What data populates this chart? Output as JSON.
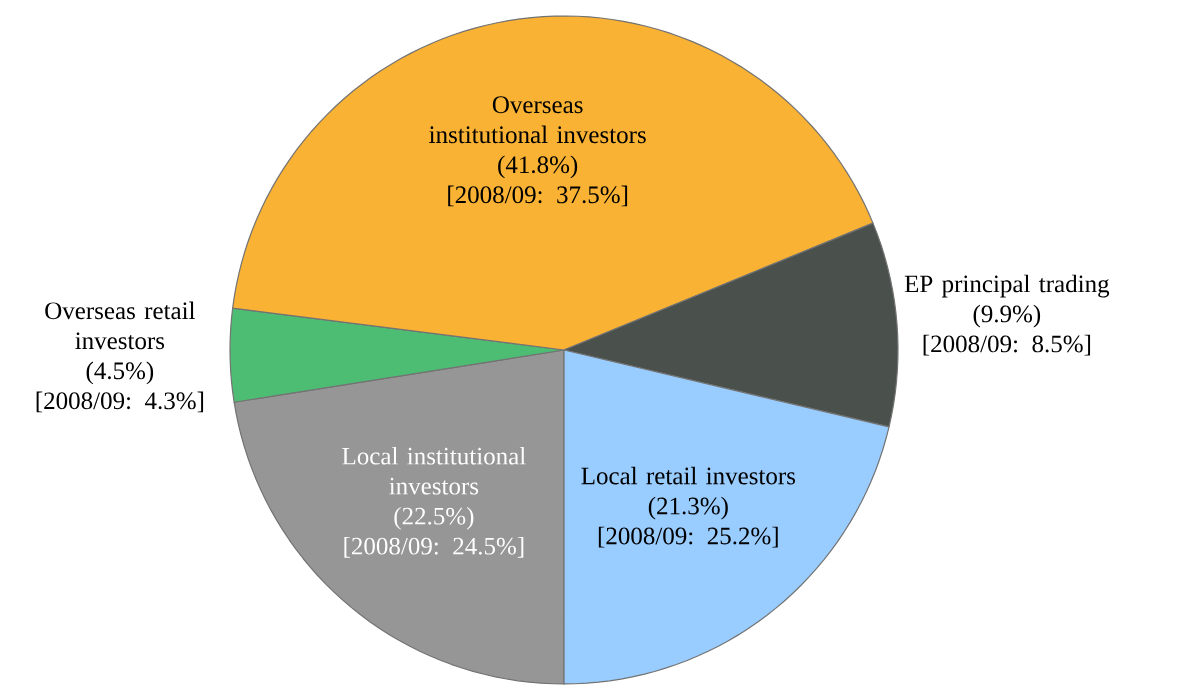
{
  "chart_data": {
    "type": "pie",
    "categories": [
      "Local institutional investors",
      "Overseas retail investors",
      "Overseas institutional investors",
      "EP principal trading",
      "Local retail investors"
    ],
    "values": [
      22.5,
      4.5,
      41.8,
      9.9,
      21.3
    ],
    "colors": [
      "#969696",
      "#4dbd74",
      "#f9b233",
      "#4a514c",
      "#99ccff"
    ],
    "value_labels": [
      "(22.5%)",
      "(4.5%)",
      "(41.8%)",
      "(9.9%)",
      "(21.3%)"
    ],
    "annotations": [
      "[2008/09: 24.5%]",
      "[2008/09: 4.3%]",
      "[2008/09: 37.5%]",
      "[2008/09: 8.5%]",
      "[2008/09: 25.2%]"
    ]
  }
}
